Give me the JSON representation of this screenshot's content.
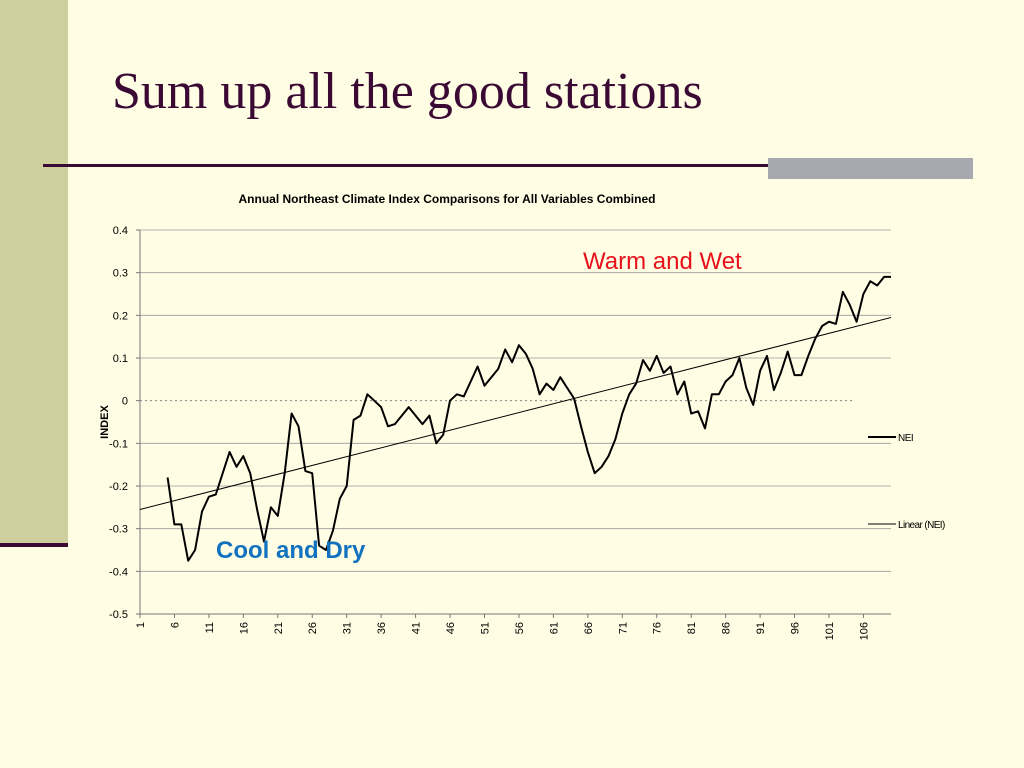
{
  "slide": {
    "title": "Sum up all the good stations"
  },
  "colors": {
    "background": "#FFFDE3",
    "title": "#3A0A35",
    "warm_annotation": "#E8101A",
    "cool_annotation": "#1272C0"
  },
  "chart_data": {
    "type": "line",
    "title": "Annual Northeast Climate Index Comparisons for All Variables Combined",
    "xlabel": "",
    "ylabel": "INDEX",
    "ylim": [
      -0.5,
      0.4
    ],
    "yticks": [
      "0.4",
      "0.3",
      "0.2",
      "0.1",
      "0",
      "-0.1",
      "-0.2",
      "-0.3",
      "-0.4",
      "-0.5"
    ],
    "xticks": [
      "1",
      "6",
      "11",
      "16",
      "21",
      "26",
      "31",
      "36",
      "41",
      "46",
      "51",
      "56",
      "61",
      "66",
      "71",
      "76",
      "81",
      "86",
      "91",
      "96",
      "101",
      "106"
    ],
    "x_range": [
      1,
      110
    ],
    "grid": true,
    "legend_position": "right",
    "series": [
      {
        "name": "NEI",
        "x_start": 5,
        "values": [
          -0.18,
          -0.29,
          -0.29,
          -0.375,
          -0.35,
          -0.26,
          -0.225,
          -0.22,
          -0.17,
          -0.12,
          -0.155,
          -0.13,
          -0.17,
          -0.255,
          -0.33,
          -0.25,
          -0.27,
          -0.17,
          -0.03,
          -0.06,
          -0.165,
          -0.17,
          -0.34,
          -0.35,
          -0.305,
          -0.23,
          -0.2,
          -0.045,
          -0.035,
          0.015,
          0.0,
          -0.015,
          -0.06,
          -0.055,
          -0.035,
          -0.015,
          -0.035,
          -0.055,
          -0.035,
          -0.1,
          -0.08,
          0.0,
          0.015,
          0.01,
          0.045,
          0.08,
          0.035,
          0.055,
          0.075,
          0.12,
          0.09,
          0.13,
          0.11,
          0.075,
          0.015,
          0.04,
          0.025,
          0.055,
          0.03,
          0.005,
          -0.06,
          -0.12,
          -0.17,
          -0.155,
          -0.13,
          -0.09,
          -0.03,
          0.015,
          0.04,
          0.095,
          0.07,
          0.105,
          0.065,
          0.08,
          0.015,
          0.045,
          -0.03,
          -0.025,
          -0.065,
          0.015,
          0.015,
          0.045,
          0.06,
          0.1,
          0.03,
          -0.01,
          0.07,
          0.105,
          0.025,
          0.065,
          0.115,
          0.06,
          0.06,
          0.105,
          0.145,
          0.175,
          0.185,
          0.18,
          0.255,
          0.225,
          0.185,
          0.25,
          0.28,
          0.27,
          0.29,
          0.29
        ]
      },
      {
        "name": "Linear (NEI)",
        "trend": true,
        "x": [
          1,
          110
        ],
        "values": [
          -0.255,
          0.195
        ]
      }
    ],
    "annotations": [
      {
        "text": "Warm and Wet",
        "color": "#E8101A"
      },
      {
        "text": "Cool and Dry",
        "color": "#1272C0"
      }
    ]
  }
}
